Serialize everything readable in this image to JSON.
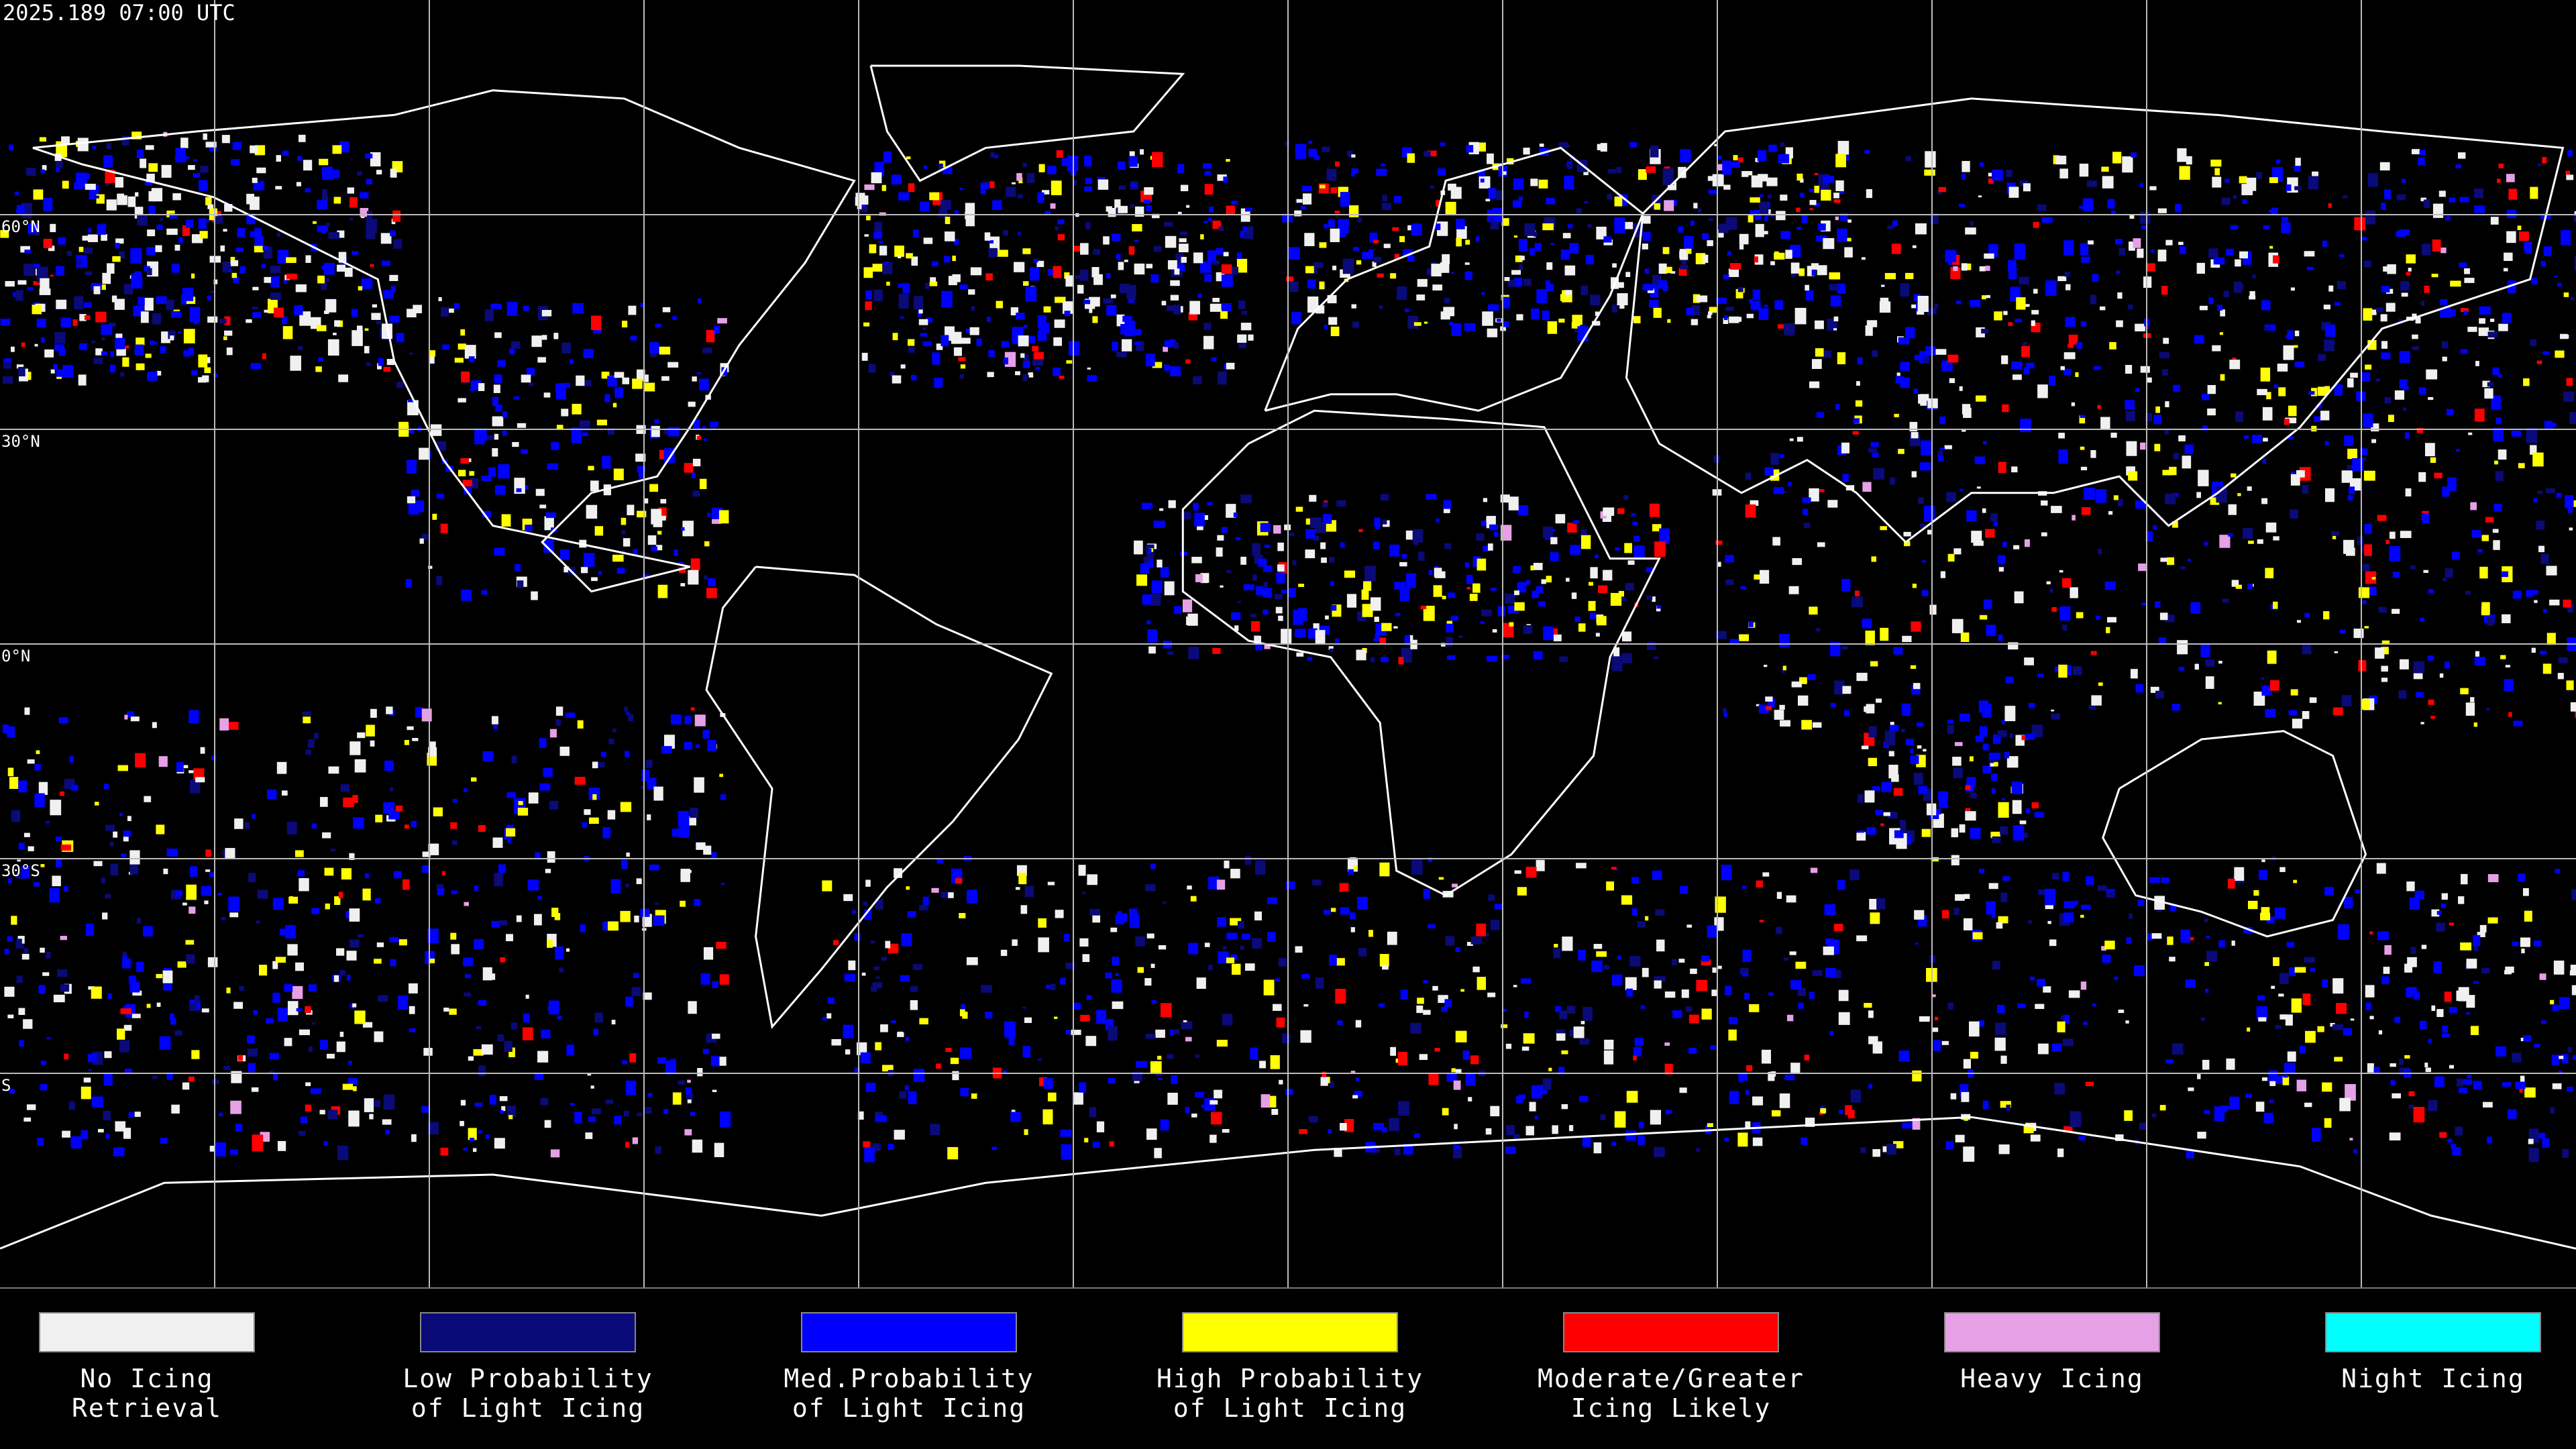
{
  "header": {
    "timestamp": "2025.189 07:00 UTC"
  },
  "map": {
    "latitude_labels": [
      "60°N",
      "30°N",
      "0°N",
      "30°S",
      "S"
    ]
  },
  "legend": {
    "items": [
      {
        "label": [
          "No Icing",
          "Retrieval"
        ],
        "color": "#f0f0f0"
      },
      {
        "label": [
          "Low Probability",
          "of Light Icing"
        ],
        "color": "#0a0a78"
      },
      {
        "label": [
          "Med.Probability",
          "of Light Icing"
        ],
        "color": "#0000ff"
      },
      {
        "label": [
          "High Probability",
          "of Light Icing"
        ],
        "color": "#ffff00"
      },
      {
        "label": [
          "Moderate/Greater",
          "Icing Likely"
        ],
        "color": "#ff0000"
      },
      {
        "label": [
          "Heavy Icing"
        ],
        "color": "#e6a0e6"
      },
      {
        "label": [
          "Night Icing"
        ],
        "color": "#00ffff"
      }
    ]
  }
}
